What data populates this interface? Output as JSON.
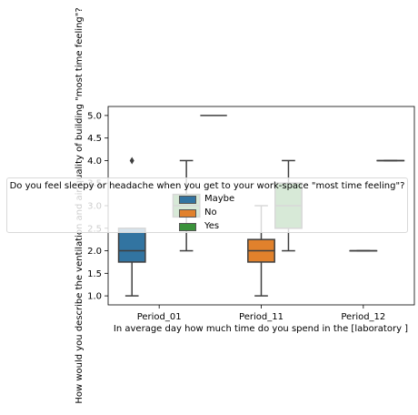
{
  "chart_data": {
    "type": "box",
    "title": "",
    "xlabel": "In average day how much time do you spend in the [laboratory ]",
    "ylabel": "How would you describe the ventilation and air quality of building  \"most time feeling\"?",
    "categories": [
      "Period_01",
      "Period_11",
      "Period_12"
    ],
    "ylim": [
      0.8,
      5.2
    ],
    "yticks": [
      "1.0",
      "1.5",
      "2.0",
      "2.5",
      "3.0",
      "3.5",
      "4.0",
      "4.5",
      "5.0"
    ],
    "legend": {
      "title": "Do you feel sleepy or headache when you get to your work-space \"most time feeling\"?",
      "position": "center",
      "entries": [
        "Maybe",
        "No",
        "Yes"
      ]
    },
    "series": [
      {
        "name": "Maybe",
        "color": "#3274a1",
        "boxes": [
          {
            "category": "Period_01",
            "whisker_low": 1.0,
            "q1": 1.75,
            "median": 2.0,
            "q3": 2.5,
            "whisker_high": 2.5,
            "outliers": [
              4.0
            ]
          },
          null,
          null
        ]
      },
      {
        "name": "No",
        "color": "#e1812c",
        "boxes": [
          null,
          {
            "category": "Period_11",
            "whisker_low": 1.0,
            "q1": 1.75,
            "median": 2.0,
            "q3": 2.25,
            "whisker_high": 3.0,
            "outliers": []
          },
          {
            "category": "Period_12",
            "whisker_low": 2.0,
            "q1": 2.0,
            "median": 2.0,
            "q3": 2.0,
            "whisker_high": 2.0,
            "outliers": []
          }
        ]
      },
      {
        "name": "Yes",
        "color": "#3a923a",
        "boxes": [
          {
            "category": "Period_01",
            "whisker_low": 2.0,
            "q1": 2.75,
            "median": 3.0,
            "q3": 3.25,
            "whisker_high": 4.0,
            "outliers": []
          },
          {
            "category": "Period_11",
            "whisker_low": 2.0,
            "q1": 2.5,
            "median": 3.0,
            "q3": 3.5,
            "whisker_high": 4.0,
            "outliers": []
          },
          {
            "category": "Period_12",
            "whisker_low": 4.0,
            "q1": 4.0,
            "median": 4.0,
            "q3": 4.0,
            "whisker_high": 4.0,
            "outliers": []
          }
        ]
      }
    ],
    "extra_marks": [
      {
        "category": "Period_01",
        "value": 5.0,
        "note_series": "Yes-offset"
      }
    ]
  }
}
